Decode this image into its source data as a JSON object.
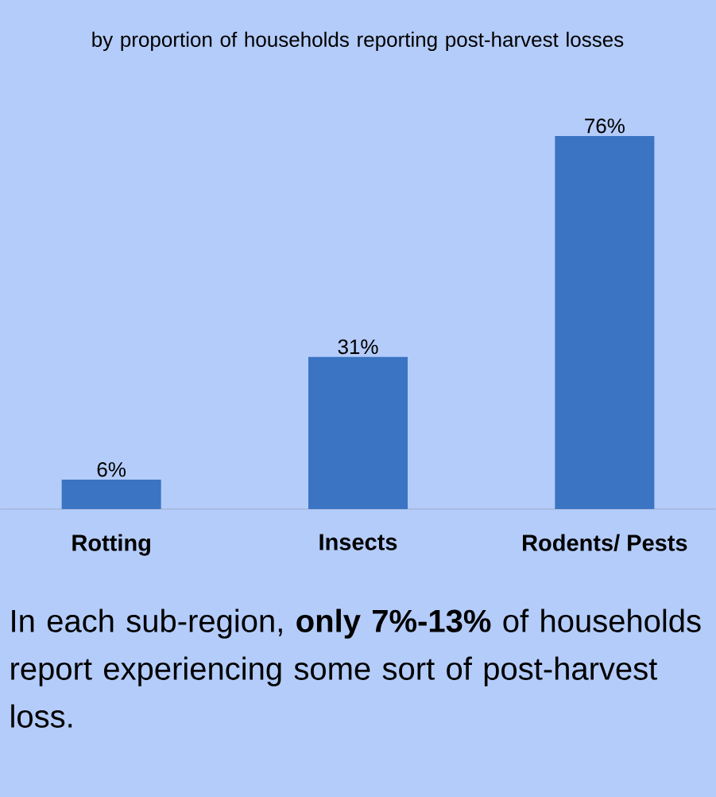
{
  "chart_data": {
    "type": "bar",
    "title": "by  proportion of households reporting post-harvest losses",
    "categories": [
      "Rotting",
      "Insects",
      "Rodents/ Pests"
    ],
    "values": [
      6,
      31,
      76
    ],
    "color": "#3a74c2",
    "value_labels": [
      "6%",
      "31%",
      "76%"
    ],
    "annotations": [
      "In each sub-region, **only 7%-13%** of households report experiencing some sort of post-harvest loss."
    ]
  }
}
